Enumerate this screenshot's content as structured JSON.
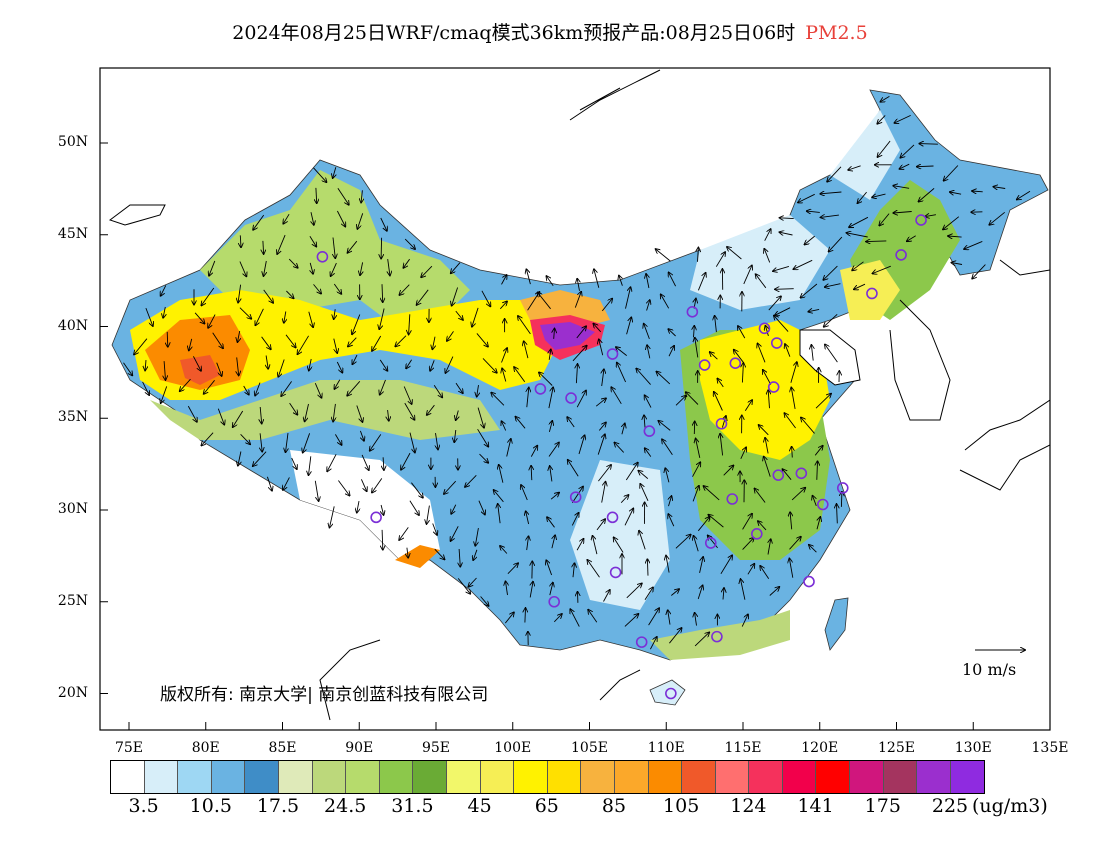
{
  "title": {
    "main": "2024年08月25日WRF/cmaq模式36km预报产品:08月25日06时",
    "pollutant": "PM2.5"
  },
  "lat_labels": [
    "50N",
    "45N",
    "40N",
    "35N",
    "30N",
    "25N",
    "20N"
  ],
  "lon_labels": [
    "75E",
    "80E",
    "85E",
    "90E",
    "95E",
    "100E",
    "105E",
    "110E",
    "115E",
    "120E",
    "125E",
    "130E",
    "135E"
  ],
  "legend": {
    "colors": [
      "#ffffff",
      "#d7eef9",
      "#9ed7f3",
      "#6ab3e2",
      "#3f8dc7",
      "#dfeab9",
      "#bcd87b",
      "#b6db6c",
      "#8cc84b",
      "#6aab35",
      "#f2f76a",
      "#f6ee55",
      "#fff200",
      "#ffe000",
      "#f7b23e",
      "#fba82a",
      "#fb8b00",
      "#f0592a",
      "#ff6f6f",
      "#f5315c",
      "#f2004b",
      "#ff0000",
      "#d0167d",
      "#a4345f",
      "#9b2fce",
      "#8f2be0"
    ],
    "labels": [
      "3.5",
      "10.5",
      "17.5",
      "24.5",
      "31.5",
      "45",
      "65",
      "85",
      "105",
      "124",
      "141",
      "175",
      "225"
    ],
    "unit": "(ug/m3)"
  },
  "wind_scale": {
    "label": "10 m/s"
  },
  "copyright": "版权所有: 南京大学| 南京创蓝科技有限公司",
  "stations": [
    [
      87.6,
      43.8
    ],
    [
      106.5,
      38.5
    ],
    [
      101.8,
      36.6
    ],
    [
      103.8,
      36.1
    ],
    [
      111.7,
      40.8
    ],
    [
      114.5,
      38.0
    ],
    [
      112.5,
      37.9
    ],
    [
      116.4,
      39.9
    ],
    [
      117.2,
      39.1
    ],
    [
      113.6,
      34.7
    ],
    [
      117.0,
      36.7
    ],
    [
      108.9,
      34.3
    ],
    [
      104.1,
      30.7
    ],
    [
      106.5,
      29.6
    ],
    [
      102.7,
      25.0
    ],
    [
      106.7,
      26.6
    ],
    [
      108.4,
      22.8
    ],
    [
      113.3,
      23.1
    ],
    [
      114.3,
      30.6
    ],
    [
      112.9,
      28.2
    ],
    [
      115.9,
      28.7
    ],
    [
      117.3,
      31.9
    ],
    [
      118.8,
      32.0
    ],
    [
      120.2,
      30.3
    ],
    [
      121.5,
      31.2
    ],
    [
      119.3,
      26.1
    ],
    [
      110.3,
      20.0
    ],
    [
      123.4,
      41.8
    ],
    [
      125.3,
      43.9
    ],
    [
      126.6,
      45.8
    ],
    [
      91.1,
      29.6
    ]
  ]
}
